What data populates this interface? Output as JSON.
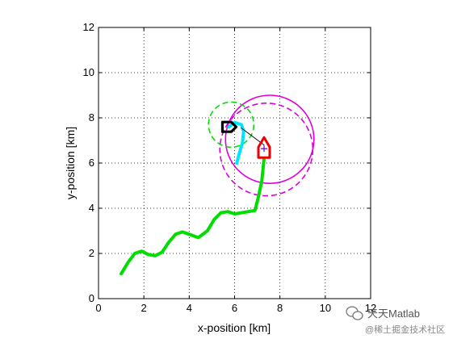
{
  "chart_data": {
    "type": "line",
    "title": "",
    "xlabel": "x-position [km]",
    "ylabel": "y-position [km]",
    "xlim": [
      0,
      12
    ],
    "ylim": [
      0,
      12
    ],
    "x_ticks": [
      "0",
      "2",
      "4",
      "6",
      "8",
      "10",
      "12"
    ],
    "y_ticks": [
      "0",
      "2",
      "4",
      "6",
      "8",
      "10",
      "12"
    ],
    "grid": "on (dotted)",
    "legend": "none",
    "series": [
      {
        "color": "#00dd00",
        "style": "thick solid",
        "x": [
          1.0,
          1.3,
          1.6,
          1.9,
          2.2,
          2.5,
          2.8,
          3.1,
          3.4,
          3.7,
          4.0,
          4.4,
          4.8,
          5.1,
          5.4,
          5.7,
          6.0,
          6.3,
          6.6,
          6.9,
          7.05,
          7.2,
          7.3
        ],
        "y": [
          1.1,
          1.6,
          2.0,
          2.1,
          1.95,
          1.9,
          2.05,
          2.5,
          2.85,
          2.95,
          2.85,
          2.7,
          3.0,
          3.5,
          3.8,
          3.85,
          3.75,
          3.8,
          3.85,
          3.9,
          4.5,
          5.2,
          6.2
        ]
      },
      {
        "color": "#00e5ff",
        "style": "thick solid",
        "x": [
          5.75,
          6.0,
          6.3,
          6.4,
          6.35,
          6.2,
          6.1
        ],
        "y": [
          7.6,
          7.8,
          7.7,
          7.4,
          6.9,
          6.4,
          6.0
        ]
      },
      {
        "color": "#000000",
        "style": "thin solid",
        "x": [
          6.3,
          7.3
        ],
        "y": [
          7.55,
          6.8
        ]
      }
    ],
    "circles": [
      {
        "color": "#dd00dd",
        "style": "solid",
        "cx": 7.55,
        "cy": 7.05,
        "r": 1.95
      },
      {
        "color": "#dd00dd",
        "style": "dashed",
        "cx": 7.4,
        "cy": 6.6,
        "r": 2.05
      },
      {
        "color": "#00dd00",
        "style": "dashed",
        "cx": 5.85,
        "cy": 7.7,
        "r": 1.0
      }
    ],
    "markers": [
      {
        "shape": "vessel",
        "color": "#ee0000",
        "x": 7.3,
        "y": 6.6
      },
      {
        "shape": "vessel-hull",
        "color": "#000000",
        "x": 5.75,
        "y": 7.6
      }
    ]
  },
  "watermark": {
    "line1": "天天Matlab",
    "line2": "@稀土掘金技术社区",
    "icon_color": "#777777"
  }
}
